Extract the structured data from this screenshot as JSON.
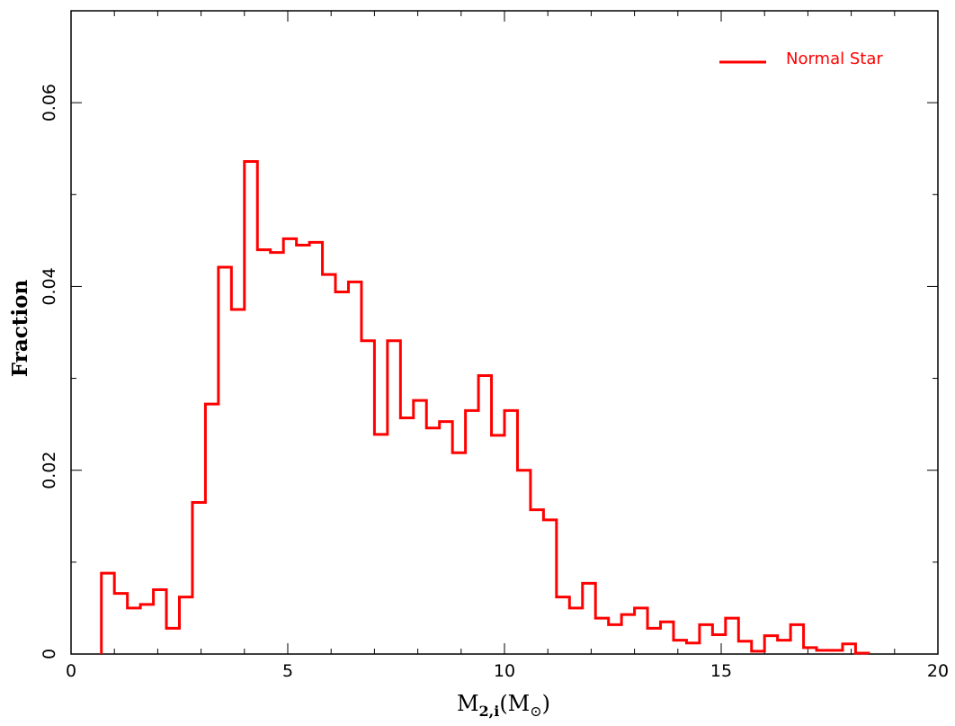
{
  "chart_data": {
    "type": "histogram",
    "xlim": [
      0,
      20
    ],
    "ylim": [
      0,
      0.07
    ],
    "xticks": [
      "0",
      "5",
      "10",
      "15",
      "20"
    ],
    "yticks": [
      "0",
      "0.02",
      "0.04",
      "0.06"
    ],
    "xlabel": {
      "main": "M",
      "sub": "2,i",
      "open": "(M",
      "sub2": "⊙",
      "close": ")"
    },
    "ylabel": "Fraction",
    "grid": false,
    "legend_position": "top-right",
    "series": [
      {
        "name": "Normal Star",
        "color": "#ff0000",
        "bin_edges": [
          0.7,
          1.0,
          1.3,
          1.6,
          1.9,
          2.2,
          2.5,
          2.8,
          3.1,
          3.4,
          3.7,
          4.0,
          4.3,
          4.6,
          4.9,
          5.2,
          5.5,
          5.8,
          6.1,
          6.4,
          6.7,
          7.0,
          7.3,
          7.6,
          7.9,
          8.2,
          8.5,
          8.8,
          9.1,
          9.4,
          9.7,
          10.0,
          10.3,
          10.6,
          10.9,
          11.2,
          11.5,
          11.8,
          12.1,
          12.4,
          12.7,
          13.0,
          13.3,
          13.6,
          13.9,
          14.2,
          14.5,
          14.8,
          15.1,
          15.4,
          15.7,
          16.0,
          16.3,
          16.6,
          16.9,
          17.2,
          17.5,
          17.8,
          18.1,
          18.4
        ],
        "values": [
          0.0088,
          0.0066,
          0.005,
          0.0054,
          0.007,
          0.0028,
          0.0062,
          0.0165,
          0.0272,
          0.0421,
          0.0375,
          0.0536,
          0.044,
          0.0437,
          0.0452,
          0.0445,
          0.0448,
          0.0413,
          0.0394,
          0.0405,
          0.0341,
          0.0239,
          0.0341,
          0.0257,
          0.0276,
          0.0246,
          0.0253,
          0.0219,
          0.0265,
          0.0303,
          0.0238,
          0.0265,
          0.02,
          0.0157,
          0.0146,
          0.0062,
          0.005,
          0.0077,
          0.0039,
          0.0032,
          0.0043,
          0.005,
          0.0028,
          0.0035,
          0.0015,
          0.0012,
          0.0032,
          0.0021,
          0.0039,
          0.0014,
          0.0003,
          0.002,
          0.0015,
          0.0032,
          0.0007,
          0.0004,
          0.0004,
          0.0011,
          0.0001
        ]
      }
    ]
  }
}
